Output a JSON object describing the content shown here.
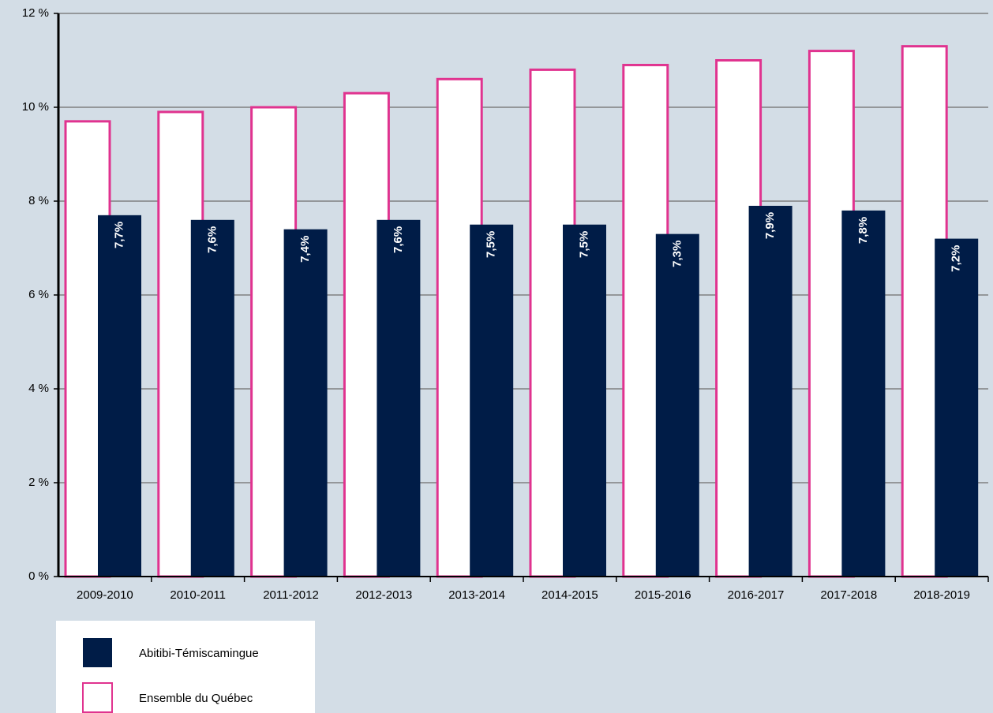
{
  "chart_data": {
    "type": "bar",
    "categories": [
      "2009-2010",
      "2010-2011",
      "2011-2012",
      "2012-2013",
      "2013-2014",
      "2014-2015",
      "2015-2016",
      "2016-2017",
      "2017-2018",
      "2018-2019"
    ],
    "series": [
      {
        "name": "Abitibi-Témiscamingue",
        "color": "#001c47",
        "values": [
          7.7,
          7.6,
          7.4,
          7.6,
          7.5,
          7.5,
          7.3,
          7.9,
          7.8,
          7.2
        ],
        "value_labels": [
          "7,7%",
          "7,6%",
          "7,4%",
          "7,6%",
          "7,5%",
          "7,5%",
          "7,3%",
          "7,9%",
          "7,8%",
          "7,2%"
        ]
      },
      {
        "name": "Ensemble du Québec",
        "color": "#e0338f",
        "values": [
          9.7,
          9.9,
          10.0,
          10.3,
          10.6,
          10.8,
          10.9,
          11.0,
          11.2,
          11.3
        ]
      }
    ],
    "ylim": [
      0,
      12
    ],
    "yticks": [
      {
        "value": 0,
        "label": "0 %"
      },
      {
        "value": 2,
        "label": "2 %"
      },
      {
        "value": 4,
        "label": "4 %"
      },
      {
        "value": 6,
        "label": "6 %"
      },
      {
        "value": 8,
        "label": "8 %"
      },
      {
        "value": 10,
        "label": "10 %"
      },
      {
        "value": 12,
        "label": "12 %"
      }
    ],
    "grid": true,
    "legend": "bottom-left"
  }
}
